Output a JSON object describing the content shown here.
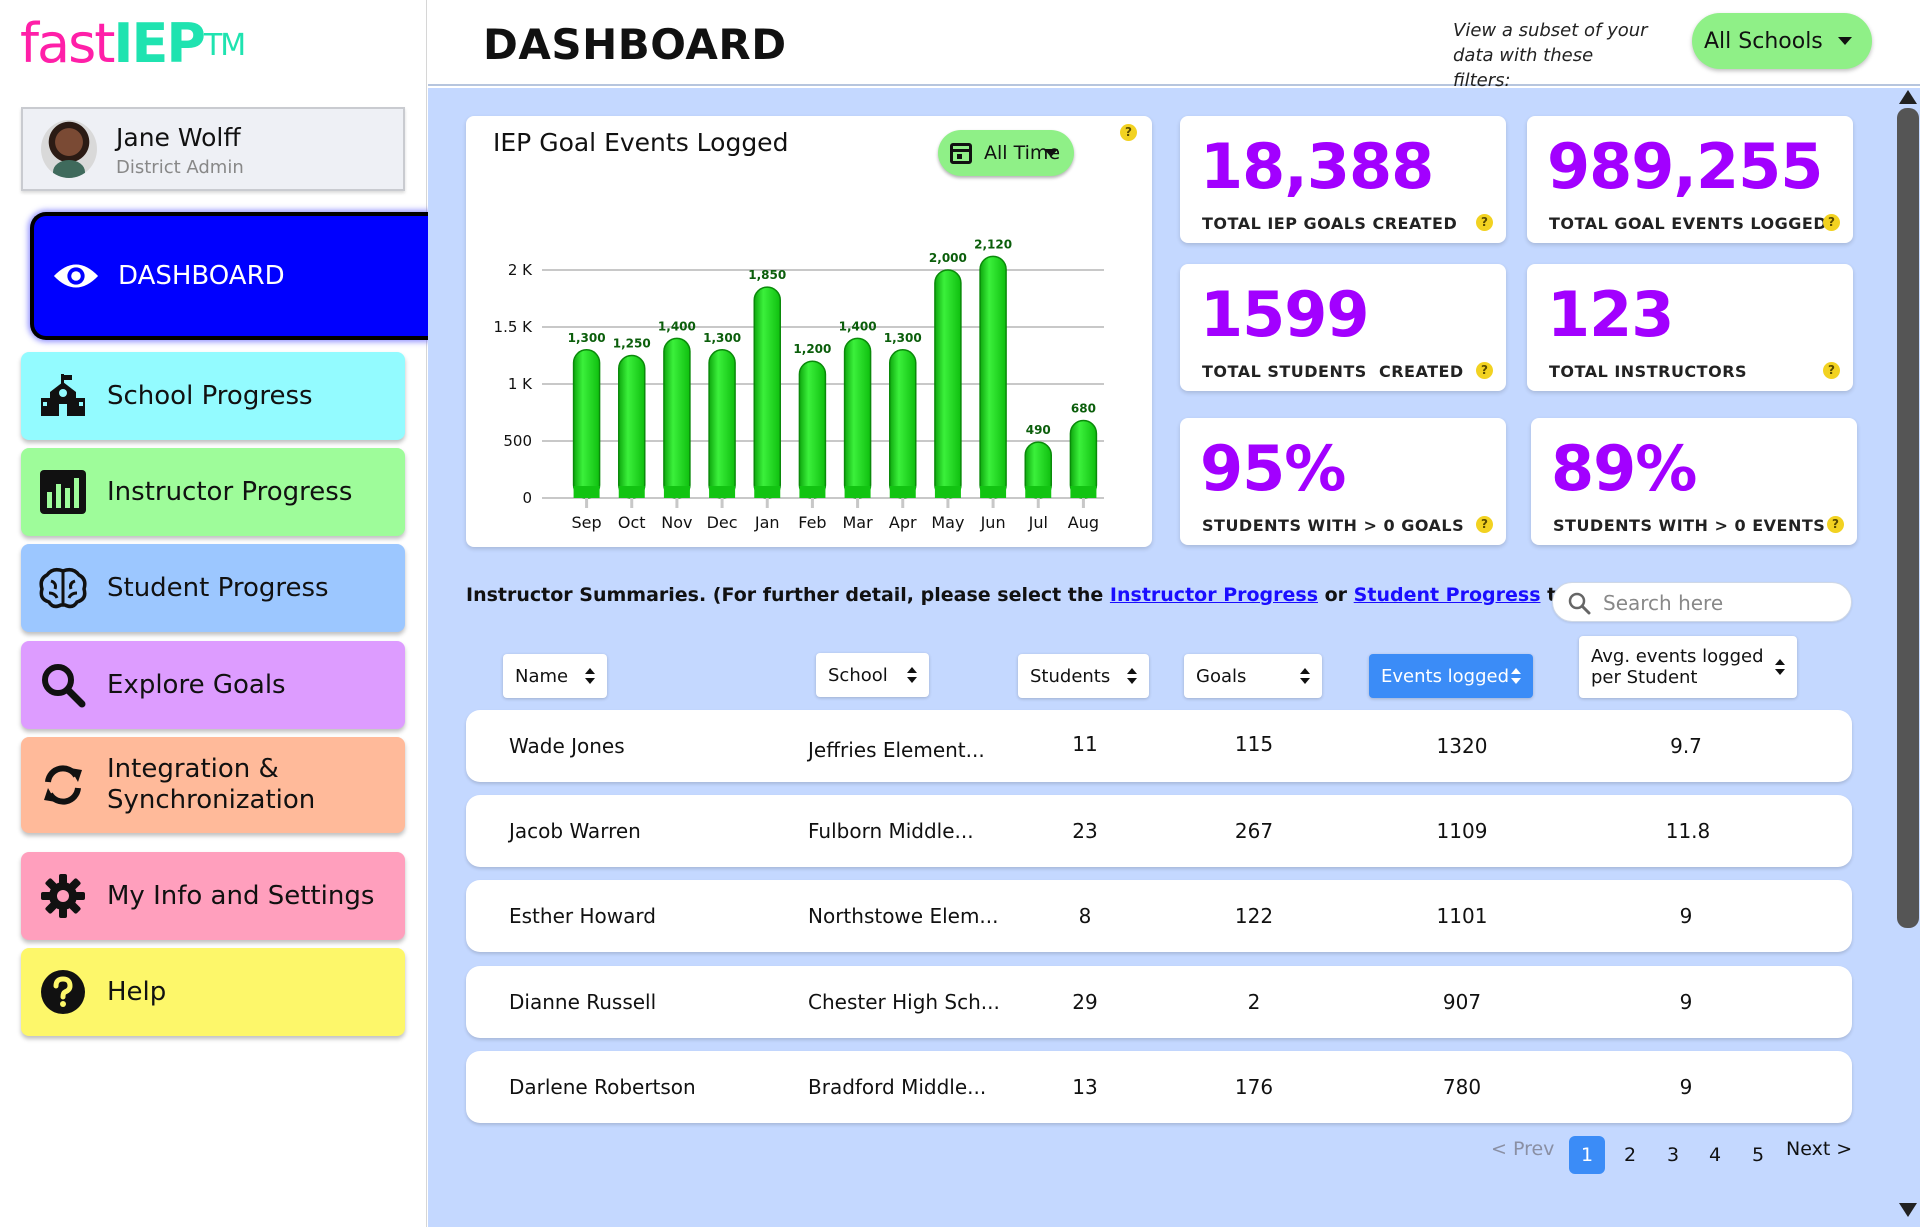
{
  "app": {
    "logo_part1": "fast",
    "logo_part2": "IEP",
    "logo_part3": "TM"
  },
  "user": {
    "name": "Jane Wolff",
    "role": "District Admin"
  },
  "nav": {
    "dashboard": "DASHBOARD",
    "school_progress": "School Progress",
    "instructor_progress": "Instructor Progress",
    "student_progress": "Student Progress",
    "explore_goals": "Explore Goals",
    "integration_line1": "Integration &",
    "integration_line2": "Synchronization",
    "my_info": "My Info and Settings",
    "help": "Help"
  },
  "header": {
    "title": "DASHBOARD",
    "filter_note_line1": "View a subset of your",
    "filter_note_line2": "data with these filters:",
    "school_filter": "All Schools"
  },
  "chart_card": {
    "title": "IEP Goal Events Logged",
    "time_filter": "All Time"
  },
  "chart_data": {
    "type": "bar",
    "title": "IEP Goal Events Logged",
    "categories": [
      "Sep",
      "Oct",
      "Nov",
      "Dec",
      "Jan",
      "Feb",
      "Mar",
      "Apr",
      "May",
      "Jun",
      "Jul",
      "Aug"
    ],
    "values": [
      1300,
      1250,
      1400,
      1300,
      1850,
      1200,
      1400,
      1300,
      2000,
      2120,
      490,
      680
    ],
    "value_labels": [
      "1,300",
      "1,250",
      "1,400",
      "1,300",
      "1,850",
      "1,200",
      "1,400",
      "1,300",
      "2,000",
      "2,120",
      "490",
      "680"
    ],
    "ytick_values": [
      0,
      500,
      1000,
      1500,
      2000
    ],
    "ytick_labels": [
      "0",
      "500",
      "1 K",
      "1.5 K",
      "2 K"
    ],
    "ylim": [
      0,
      2000
    ],
    "grid": true,
    "bar_color": "#17d117"
  },
  "stats": [
    {
      "value": "18,388",
      "label": "TOTAL IEP GOALS CREATED"
    },
    {
      "value": "989,255",
      "label": "TOTAL GOAL EVENTS LOGGED"
    },
    {
      "value": "1599",
      "label": "TOTAL STUDENTS  CREATED"
    },
    {
      "value": "123",
      "label": "TOTAL INSTRUCTORS"
    },
    {
      "value": "95%",
      "label": "STUDENTS WITH > 0 GOALS"
    },
    {
      "value": "89%",
      "label": "STUDENTS WITH > 0 EVENTS"
    }
  ],
  "summary": {
    "prefix": "Instructor Summaries. (For further detail, please select the ",
    "link1": "Instructor Progress",
    "middle": " or ",
    "link2": "Student Progress",
    "suffix": " tab.)",
    "search_placeholder": "Search here"
  },
  "table": {
    "headers": {
      "name": "Name",
      "school": "School",
      "students": "Students",
      "goals": "Goals",
      "events": "Events logged",
      "avg_line1": "Avg. events logged",
      "avg_line2": "per Student"
    },
    "rows": [
      {
        "name": "Wade Jones",
        "school": "Jeffries Element...",
        "students": "11",
        "goals": "115",
        "events": "1320",
        "avg": "9.7"
      },
      {
        "name": "Jacob Warren",
        "school": "Fulborn Middle...",
        "students": "23",
        "goals": "267",
        "events": "1109",
        "avg": "11.8"
      },
      {
        "name": "Esther Howard",
        "school": "Northstowe Elem...",
        "students": "8",
        "goals": "122",
        "events": "1101",
        "avg": "9"
      },
      {
        "name": "Dianne Russell",
        "school": "Chester High Sch...",
        "students": "29",
        "goals": "2",
        "events": "907",
        "avg": "9"
      },
      {
        "name": "Darlene Robertson",
        "school": "Bradford Middle...",
        "students": "13",
        "goals": "176",
        "events": "780",
        "avg": "9"
      }
    ]
  },
  "pagination": {
    "prev": "< Prev",
    "pages": [
      "1",
      "2",
      "3",
      "4",
      "5"
    ],
    "current": "1",
    "next": "Next >"
  },
  "colors": {
    "accent_purple": "#a200ff",
    "main_bg": "#c4d8ff",
    "filter_green": "#8ff087",
    "active_blue": "#3b8cf7"
  }
}
